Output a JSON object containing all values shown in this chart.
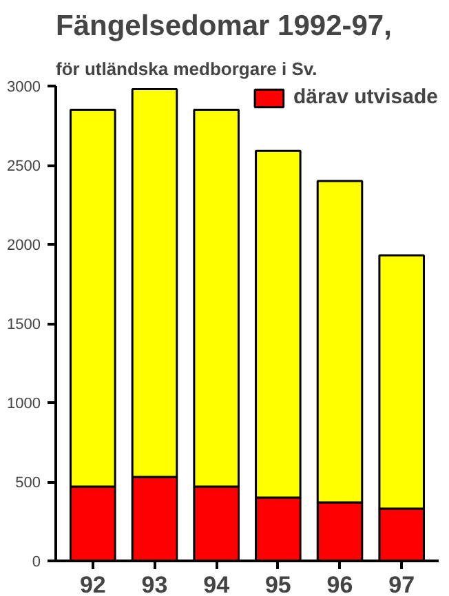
{
  "chart_data": {
    "type": "bar",
    "title": "Fängelsedomar  1992-97,",
    "subtitle": "för utländska medborgare i Sv.",
    "categories": [
      "92",
      "93",
      "94",
      "95",
      "96",
      "97"
    ],
    "stacked": true,
    "series": [
      {
        "name": "därav utvisade",
        "color": "#ff0000",
        "values": [
          470,
          530,
          470,
          400,
          370,
          330
        ]
      },
      {
        "color": "#ffff00",
        "values": [
          2380,
          2450,
          2380,
          2190,
          2030,
          1600
        ]
      }
    ],
    "ylim": [
      0,
      3000
    ],
    "yticks": [
      0,
      500,
      1000,
      1500,
      2000,
      2500,
      3000
    ],
    "grid": false,
    "legend": "top right"
  }
}
